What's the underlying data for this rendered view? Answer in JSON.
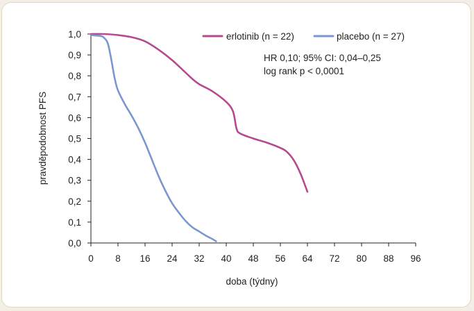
{
  "chart_data": {
    "type": "line",
    "title": "",
    "xlabel": "doba (týdny)",
    "ylabel": "pravděpodobnost PFS",
    "xlim": [
      0,
      96
    ],
    "ylim": [
      0,
      1.0
    ],
    "x_ticks": [
      0,
      8,
      16,
      24,
      32,
      40,
      48,
      56,
      64,
      72,
      80,
      88,
      96
    ],
    "x_tick_labels": [
      "0",
      "8",
      "16",
      "24",
      "32",
      "40",
      "48",
      "56",
      "64",
      "72",
      "80",
      "88",
      "96"
    ],
    "y_ticks": [
      0,
      0.1,
      0.2,
      0.3,
      0.4,
      0.5,
      0.6,
      0.7,
      0.8,
      0.9,
      1.0
    ],
    "y_tick_labels": [
      "0,0",
      "0,1",
      "0,2",
      "0,3",
      "0,4",
      "0,5",
      "0,6",
      "0,7",
      "0,8",
      "0,9",
      "1,0"
    ],
    "grid": false,
    "legend_position": "top-right",
    "series": [
      {
        "name": "erlotinib (n = 22)",
        "color": "#b54a8f",
        "points": [
          [
            0,
            1.0
          ],
          [
            4,
            1.0
          ],
          [
            8,
            0.995
          ],
          [
            12,
            0.985
          ],
          [
            16,
            0.965
          ],
          [
            20,
            0.925
          ],
          [
            24,
            0.875
          ],
          [
            28,
            0.815
          ],
          [
            30,
            0.785
          ],
          [
            32,
            0.76
          ],
          [
            36,
            0.725
          ],
          [
            40,
            0.675
          ],
          [
            42,
            0.63
          ],
          [
            43,
            0.55
          ],
          [
            44,
            0.525
          ],
          [
            48,
            0.5
          ],
          [
            52,
            0.48
          ],
          [
            56,
            0.455
          ],
          [
            58,
            0.435
          ],
          [
            60,
            0.395
          ],
          [
            62,
            0.33
          ],
          [
            64,
            0.245
          ]
        ]
      },
      {
        "name": "placebo (n = 27)",
        "color": "#7b97cf",
        "points": [
          [
            0,
            0.995
          ],
          [
            3,
            0.99
          ],
          [
            4,
            0.98
          ],
          [
            5,
            0.955
          ],
          [
            6,
            0.88
          ],
          [
            7,
            0.79
          ],
          [
            8,
            0.73
          ],
          [
            10,
            0.665
          ],
          [
            12,
            0.61
          ],
          [
            14,
            0.55
          ],
          [
            16,
            0.48
          ],
          [
            18,
            0.4
          ],
          [
            20,
            0.32
          ],
          [
            22,
            0.25
          ],
          [
            24,
            0.19
          ],
          [
            26,
            0.145
          ],
          [
            28,
            0.105
          ],
          [
            30,
            0.075
          ],
          [
            32,
            0.055
          ],
          [
            34,
            0.035
          ],
          [
            36,
            0.018
          ],
          [
            37,
            0.008
          ]
        ]
      }
    ],
    "annotations": [
      "HR 0,10; 95% CI: 0,04–0,25",
      "log rank p < 0,0001"
    ]
  }
}
